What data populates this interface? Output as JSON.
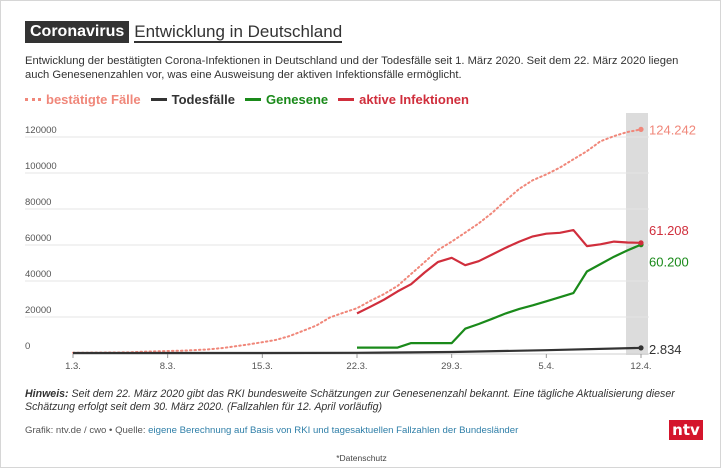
{
  "header": {
    "tag": "Coronavirus",
    "title": "Entwicklung in Deutschland"
  },
  "subtitle": "Entwicklung der bestätigten Corona-Infektionen in Deutschland und der Todesfälle seit 1. März 2020. Seit dem 22. März 2020 liegen auch Genesenenzahlen vor, was eine Ausweisung der aktiven Infektionsfälle ermöglicht.",
  "legend": [
    {
      "label": "bestätigte Fälle",
      "color": "#f0877a",
      "style": "dotted"
    },
    {
      "label": "Todesfälle",
      "color": "#333333",
      "style": "solid"
    },
    {
      "label": "Genesene",
      "color": "#1a8a1a",
      "style": "solid"
    },
    {
      "label": "aktive Infektionen",
      "color": "#d02e3c",
      "style": "solid"
    }
  ],
  "note_bold": "Hinweis:",
  "note_text": " Seit dem 22. März 2020 gibt das RKI bundesweite Schätzungen zur Genesenenzahl bekannt. Eine tägliche Aktualisierung dieser Schätzung erfolgt seit dem 30. März 2020. (Fallzahlen für 12. April vorläufig)",
  "source_prefix": "Grafik: ntv.de / cwo • Quelle: ",
  "source_link": "eigene Berechnung auf Basis von RKI und tagesaktuellen Fallzahlen der Bundesländer",
  "logo": "ntv",
  "privacy": "*Datenschutz",
  "chart_data": {
    "type": "line",
    "x_axis": {
      "ticks": [
        "1.3.",
        "8.3.",
        "15.3.",
        "22.3.",
        "29.3.",
        "5.4.",
        "12.4."
      ],
      "range": [
        "2020-03-01",
        "2020-04-12"
      ]
    },
    "y_axis": {
      "ticks": [
        "0",
        "20000",
        "40000",
        "60000",
        "80000",
        "100000",
        "120000"
      ],
      "ylim": [
        0,
        130000
      ]
    },
    "grid": true,
    "highlight_last_day": true,
    "series": [
      {
        "name": "bestätigte Fälle",
        "color": "#f0877a",
        "style": "dotted",
        "dates": [
          "2020-03-01",
          "2020-03-02",
          "2020-03-03",
          "2020-03-04",
          "2020-03-05",
          "2020-03-06",
          "2020-03-07",
          "2020-03-08",
          "2020-03-09",
          "2020-03-10",
          "2020-03-11",
          "2020-03-12",
          "2020-03-13",
          "2020-03-14",
          "2020-03-15",
          "2020-03-16",
          "2020-03-17",
          "2020-03-18",
          "2020-03-19",
          "2020-03-20",
          "2020-03-21",
          "2020-03-22",
          "2020-03-23",
          "2020-03-24",
          "2020-03-25",
          "2020-03-26",
          "2020-03-27",
          "2020-03-28",
          "2020-03-29",
          "2020-03-30",
          "2020-03-31",
          "2020-04-01",
          "2020-04-02",
          "2020-04-03",
          "2020-04-04",
          "2020-04-05",
          "2020-04-06",
          "2020-04-07",
          "2020-04-08",
          "2020-04-09",
          "2020-04-10",
          "2020-04-11",
          "2020-04-12"
        ],
        "values": [
          130,
          160,
          200,
          260,
          350,
          690,
          900,
          1100,
          1300,
          1600,
          2000,
          2700,
          3700,
          4800,
          6000,
          7300,
          9400,
          12300,
          15300,
          19800,
          22400,
          24900,
          29000,
          32700,
          37300,
          43900,
          50500,
          57300,
          61900,
          66900,
          72000,
          77900,
          84800,
          91200,
          96000,
          99200,
          103000,
          107600,
          112100,
          117600,
          120500,
          122800,
          124242
        ],
        "end_label": "124.242"
      },
      {
        "name": "Todesfälle",
        "color": "#333333",
        "style": "solid",
        "dates": [
          "2020-03-01",
          "2020-03-08",
          "2020-03-15",
          "2020-03-22",
          "2020-03-29",
          "2020-04-05",
          "2020-04-12"
        ],
        "values": [
          0,
          1,
          13,
          94,
          560,
          1580,
          2834
        ],
        "end_label": "2.834"
      },
      {
        "name": "Genesene",
        "color": "#1a8a1a",
        "style": "solid",
        "dates": [
          "2020-03-22",
          "2020-03-23",
          "2020-03-24",
          "2020-03-25",
          "2020-03-26",
          "2020-03-27",
          "2020-03-28",
          "2020-03-29",
          "2020-03-30",
          "2020-03-31",
          "2020-04-01",
          "2020-04-02",
          "2020-04-03",
          "2020-04-04",
          "2020-04-05",
          "2020-04-06",
          "2020-04-07",
          "2020-04-08",
          "2020-04-09",
          "2020-04-10",
          "2020-04-11",
          "2020-04-12"
        ],
        "values": [
          3000,
          3000,
          3000,
          3000,
          5500,
          5500,
          5500,
          5500,
          13500,
          16100,
          19000,
          22000,
          24500,
          26500,
          28700,
          31000,
          33300,
          45300,
          49400,
          53500,
          57000,
          60200
        ],
        "end_label": "60.200"
      },
      {
        "name": "aktive Infektionen",
        "color": "#d02e3c",
        "style": "solid",
        "dates": [
          "2020-03-22",
          "2020-03-23",
          "2020-03-24",
          "2020-03-25",
          "2020-03-26",
          "2020-03-27",
          "2020-03-28",
          "2020-03-29",
          "2020-03-30",
          "2020-03-31",
          "2020-04-01",
          "2020-04-02",
          "2020-04-03",
          "2020-04-04",
          "2020-04-05",
          "2020-04-06",
          "2020-04-07",
          "2020-04-08",
          "2020-04-09",
          "2020-04-10",
          "2020-04-11",
          "2020-04-12"
        ],
        "values": [
          22000,
          25700,
          29600,
          34200,
          38200,
          44700,
          50600,
          52900,
          48800,
          51000,
          54700,
          58500,
          61900,
          64800,
          66300,
          66800,
          68300,
          59400,
          60400,
          61900,
          61400,
          61208
        ],
        "end_label": "61.208"
      }
    ]
  }
}
